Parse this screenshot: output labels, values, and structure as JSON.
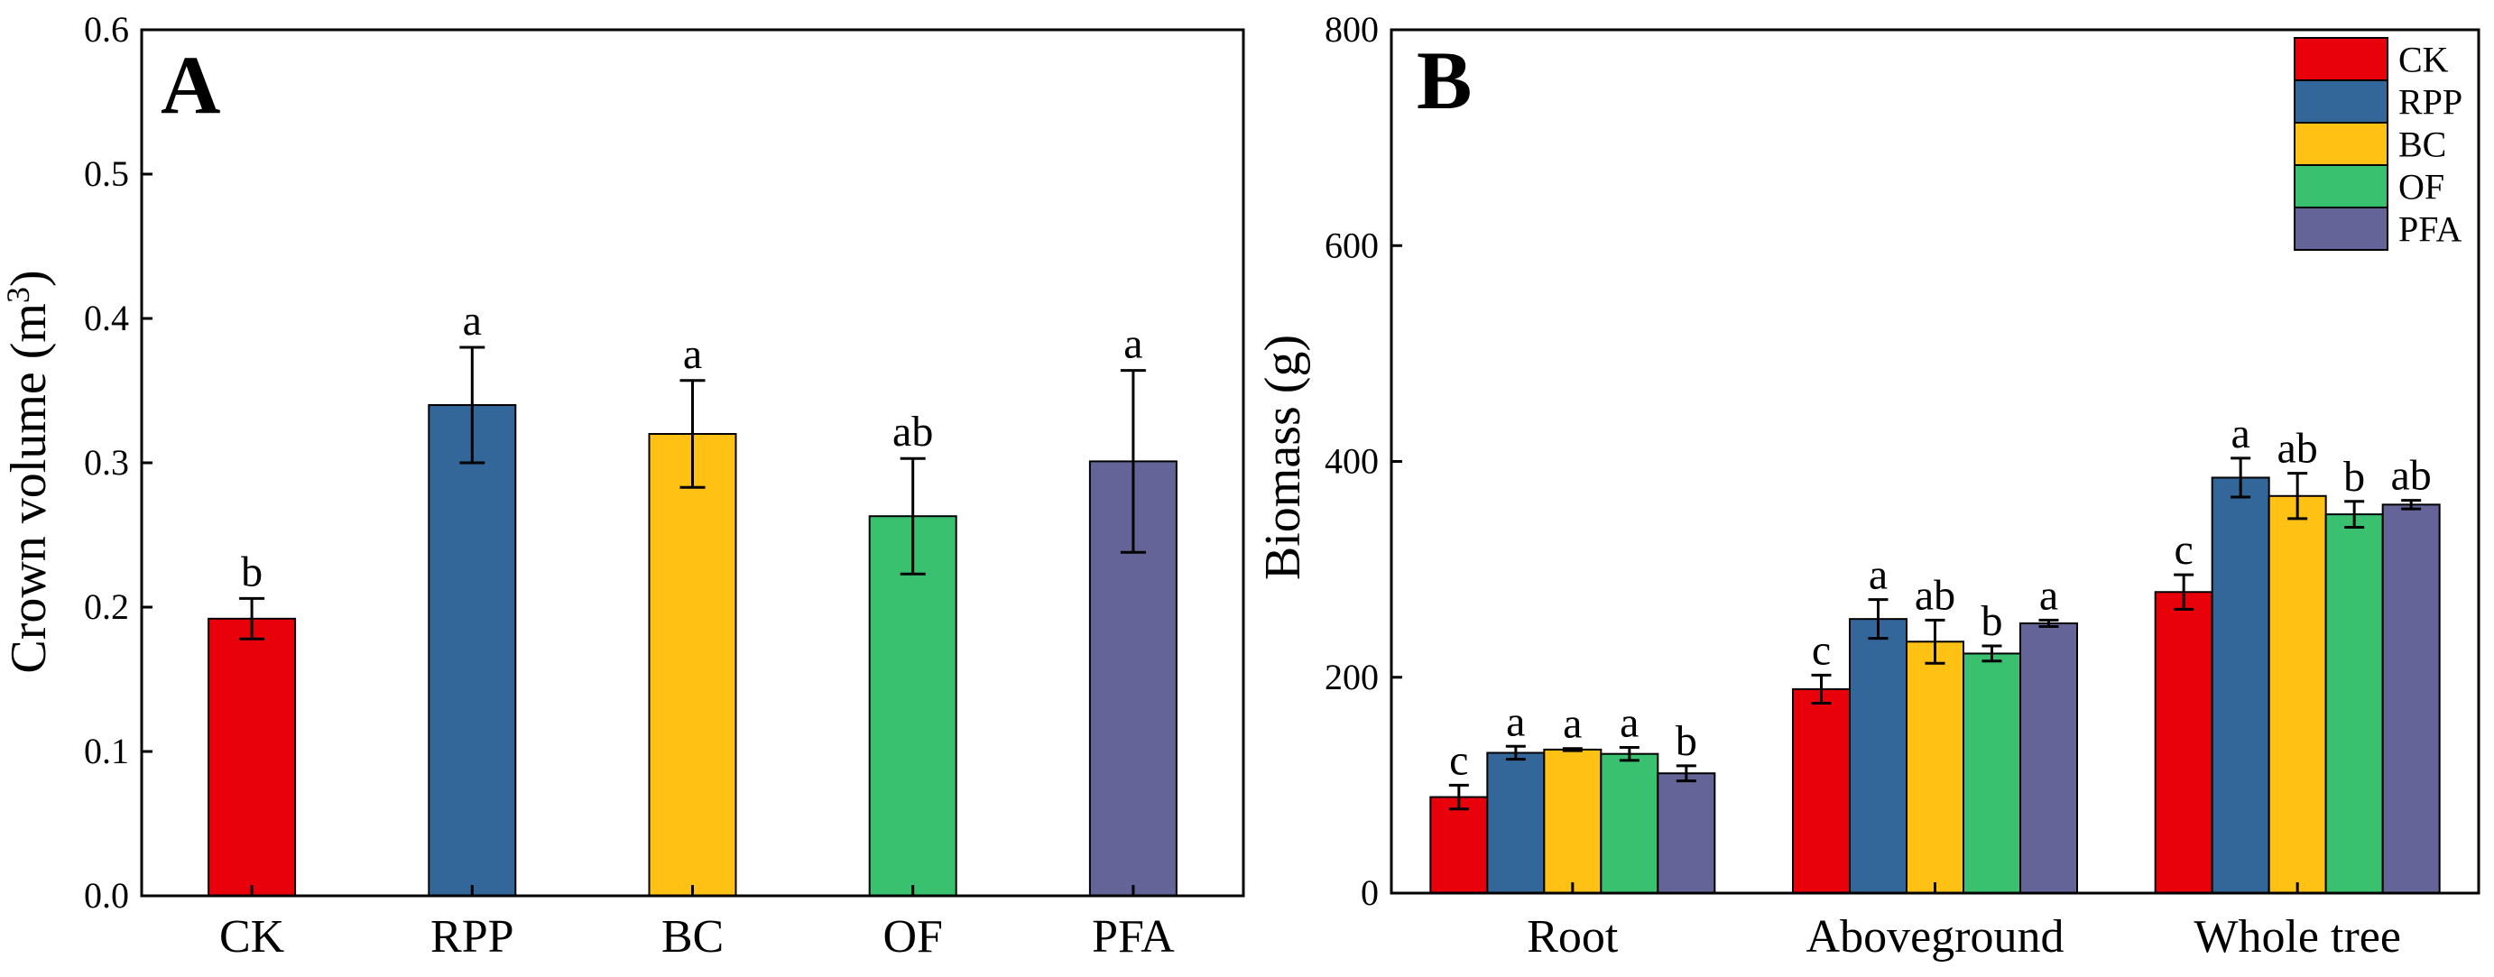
{
  "chart_data": [
    {
      "type": "bar",
      "panel_label": "A",
      "categories": [
        "CK",
        "RPP",
        "BC",
        "OF",
        "PFA"
      ],
      "values": [
        0.192,
        0.34,
        0.32,
        0.263,
        0.301
      ],
      "errors": [
        0.014,
        0.04,
        0.037,
        0.04,
        0.063
      ],
      "significance": [
        "b",
        "a",
        "a",
        "ab",
        "a"
      ],
      "colors": [
        "#e8000b",
        "#336699",
        "#ffc113",
        "#39c16f",
        "#656498"
      ],
      "ylabel_main": "Crown volume (m",
      "ylabel_sup": "3",
      "ylabel_end": ")",
      "ylim": [
        0,
        0.6
      ],
      "yticks": [
        "0.0",
        "0.1",
        "0.2",
        "0.3",
        "0.4",
        "0.5",
        "0.6"
      ],
      "grid": false
    },
    {
      "type": "bar",
      "panel_label": "B",
      "categories": [
        "Root",
        "Aboveground",
        "Whole tree"
      ],
      "series": [
        {
          "name": "CK",
          "color": "#e8000b",
          "values": [
            89,
            189,
            279
          ],
          "errors": [
            11,
            13,
            16
          ],
          "significance": [
            "c",
            "c",
            "c"
          ]
        },
        {
          "name": "RPP",
          "color": "#336699",
          "values": [
            130,
            254,
            385
          ],
          "errors": [
            6,
            18,
            18
          ],
          "significance": [
            "a",
            "a",
            "a"
          ]
        },
        {
          "name": "BC",
          "color": "#ffc113",
          "values": [
            133,
            233,
            368
          ],
          "errors": [
            1,
            20,
            21
          ],
          "significance": [
            "a",
            "ab",
            "ab"
          ]
        },
        {
          "name": "OF",
          "color": "#39c16f",
          "values": [
            129,
            222,
            351
          ],
          "errors": [
            6,
            7,
            12
          ],
          "significance": [
            "a",
            "b",
            "b"
          ]
        },
        {
          "name": "PFA",
          "color": "#656498",
          "values": [
            111,
            250,
            360
          ],
          "errors": [
            7,
            3,
            4
          ],
          "significance": [
            "b",
            "a",
            "ab"
          ]
        }
      ],
      "ylabel": "Biomass (g)",
      "ylim": [
        0,
        800
      ],
      "yticks": [
        "0",
        "200",
        "400",
        "600",
        "800"
      ],
      "legend_position": "top-right",
      "grid": false
    }
  ]
}
